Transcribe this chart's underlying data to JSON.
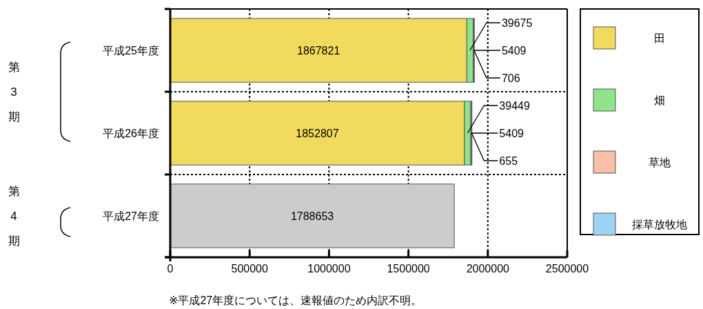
{
  "chart_data": {
    "type": "bar",
    "orientation": "horizontal",
    "stacked": true,
    "categories": [
      "平成25年度",
      "平成26年度",
      "平成27年度"
    ],
    "series": [
      {
        "name": "田",
        "color": "#f2da5e",
        "values": [
          1867821,
          1852807,
          null
        ]
      },
      {
        "name": "畑",
        "color": "#8fe38a",
        "values": [
          39675,
          39449,
          null
        ]
      },
      {
        "name": "草地",
        "color": "#f9bfa9",
        "values": [
          5409,
          5409,
          null
        ]
      },
      {
        "name": "採草放牧地",
        "color": "#9dd3f2",
        "values": [
          706,
          655,
          null
        ]
      },
      {
        "color": "#cccccc",
        "values": [
          null,
          null,
          1788653
        ]
      }
    ],
    "xlim": [
      0,
      2500000
    ],
    "xticks": [
      0,
      500000,
      1000000,
      1500000,
      2000000,
      2500000
    ],
    "grid": true,
    "legend": "right",
    "data_labels": true,
    "annotations": [
      "第3期",
      "第4期",
      "※平成27年度については、速報値のため内訳不明。"
    ]
  }
}
